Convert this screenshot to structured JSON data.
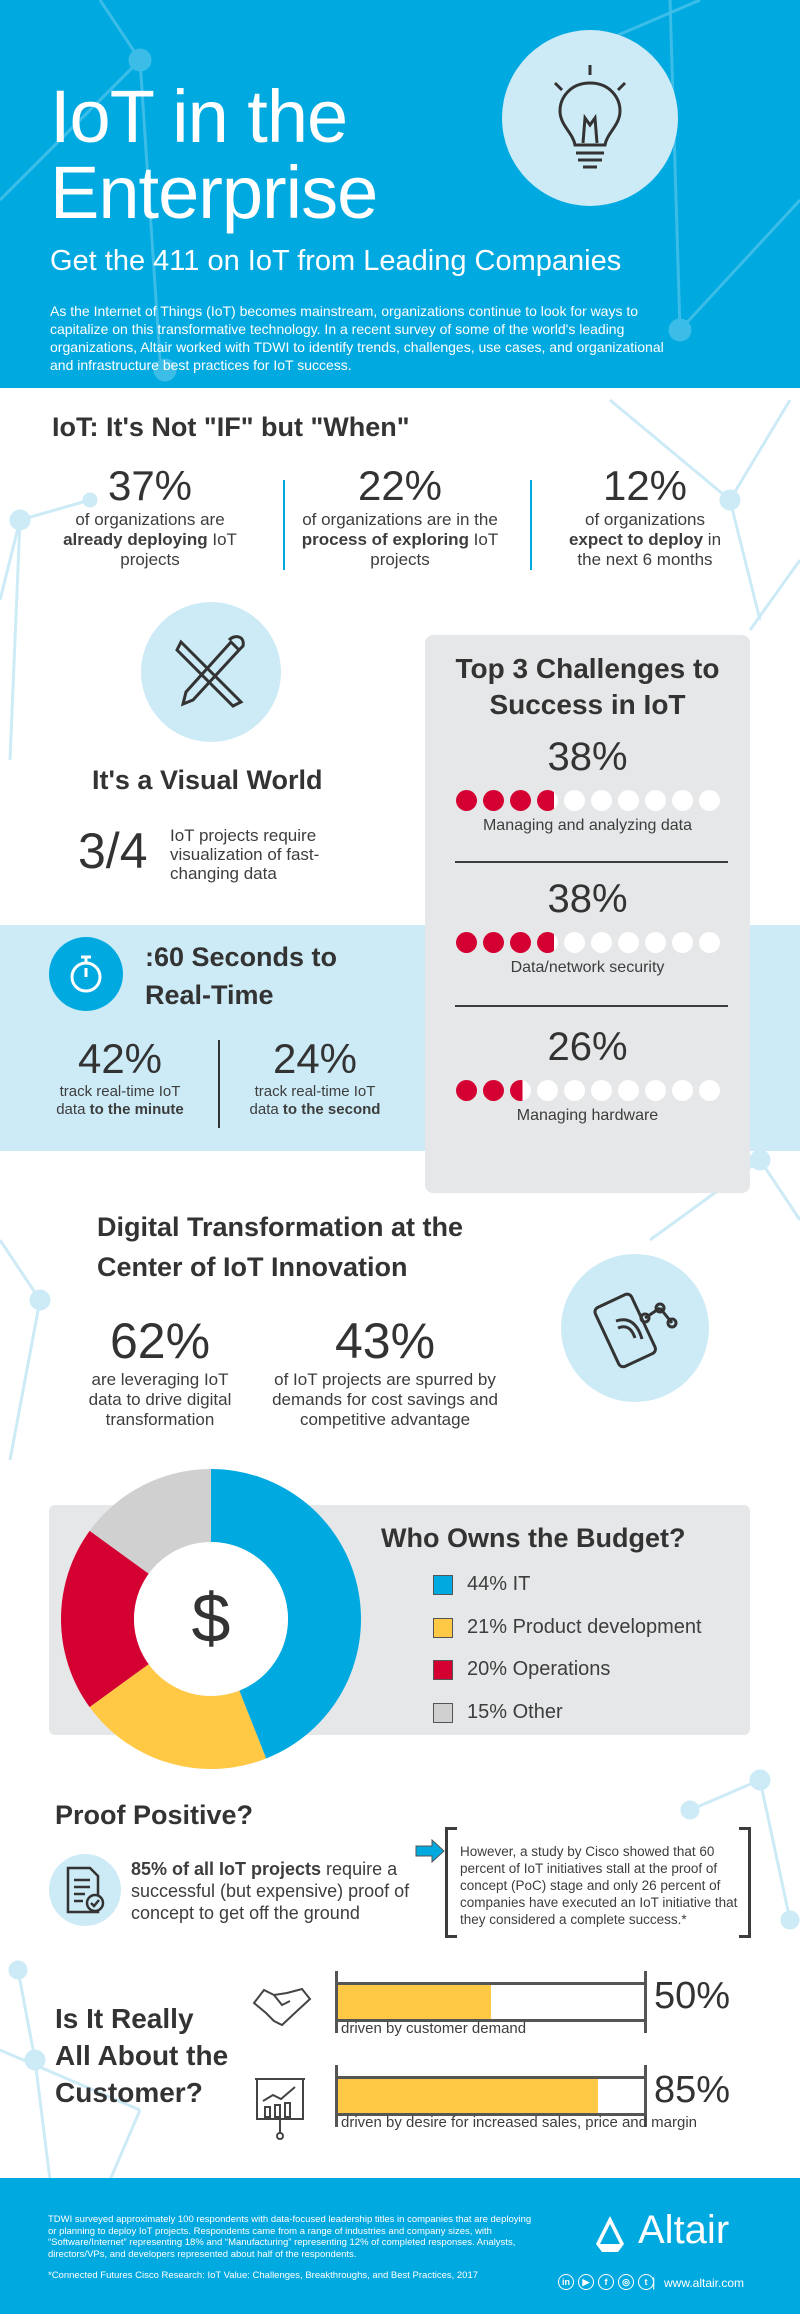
{
  "header": {
    "title_line1": "IoT in the",
    "title_line2": "Enterprise",
    "subtitle": "Get the 411 on IoT from Leading Companies",
    "intro": "As the Internet of Things (IoT) becomes mainstream, organizations continue to look for ways to capitalize on this transformative technology. In a recent survey of some of the world's leading organizations, Altair worked with TDWI to identify trends, challenges, use cases, and organizational and infrastructure best practices for IoT success.",
    "icon": "lightbulb-icon"
  },
  "when": {
    "title": "IoT: It's Not \"IF\" but \"When\"",
    "stats": [
      {
        "value": "37%",
        "pre": "of organizations are ",
        "bold": "already deploying",
        "post": " IoT projects"
      },
      {
        "value": "22%",
        "pre": "of organizations are in the ",
        "bold": "process of exploring",
        "post": " IoT projects"
      },
      {
        "value": "12%",
        "pre": "of organizations ",
        "bold": "expect to deploy",
        "post": " in the next 6 months"
      }
    ]
  },
  "visual": {
    "title": "It's a Visual World",
    "value": "3/4",
    "desc": "IoT projects require visualization of fast-changing data",
    "icon": "pencil-brush-icon"
  },
  "realtime": {
    "title_line1": ":60 Seconds to",
    "title_line2": "Real-Time",
    "icon": "stopwatch-icon",
    "stats": [
      {
        "value": "42%",
        "pre": "track real-time IoT data ",
        "bold": "to the minute"
      },
      {
        "value": "24%",
        "pre": "track real-time IoT data ",
        "bold": "to the second"
      }
    ]
  },
  "challenges": {
    "title": "Top 3 Challenges to Success in IoT",
    "accent": "#d50032",
    "items": [
      {
        "value": "38%",
        "fraction": 0.38,
        "label": "Managing and analyzing data"
      },
      {
        "value": "38%",
        "fraction": 0.38,
        "label": "Data/network security"
      },
      {
        "value": "26%",
        "fraction": 0.26,
        "label": "Managing hardware"
      }
    ]
  },
  "digital": {
    "title_line1": "Digital Transformation at the",
    "title_line2": "Center of IoT Innovation",
    "icon": "phone-network-icon",
    "stats": [
      {
        "value": "62%",
        "desc": "are leveraging IoT data to drive digital transformation"
      },
      {
        "value": "43%",
        "desc": "of IoT projects are spurred by demands for cost savings and competitive advantage"
      }
    ]
  },
  "chart_data": {
    "type": "pie",
    "title": "Who Owns the Budget?",
    "center_label": "$",
    "categories": [
      "IT",
      "Product development",
      "Operations",
      "Other"
    ],
    "values": [
      44,
      21,
      20,
      15
    ],
    "labels": [
      "44% IT",
      "21% Product development",
      "20% Operations",
      "15% Other"
    ],
    "colors": [
      "#00a9e0",
      "#ffc845",
      "#d50032",
      "#d0d0d0"
    ]
  },
  "proof": {
    "title": "Proof Positive?",
    "bold": "85% of all IoT projects",
    "text": " require a successful (but expensive) proof of concept to get off the ground",
    "quote": "However, a study by Cisco showed that 60 percent of IoT initiatives stall at the proof of concept (PoC) stage and only 26 percent of companies have executed an IoT initiative that they considered a complete success.*"
  },
  "customer": {
    "title_line1": "Is It Really",
    "title_line2": "All About the",
    "title_line3": "Customer?",
    "bars": [
      {
        "value": "50%",
        "fraction": 0.5,
        "label": "driven by customer demand",
        "icon": "handshake-icon"
      },
      {
        "value": "85%",
        "fraction": 0.85,
        "label": "driven by desire for increased sales, price and margin",
        "icon": "presentation-chart-icon"
      }
    ]
  },
  "footer": {
    "survey": "TDWI surveyed approximately 100 respondents with data-focused leadership titles in companies that are deploying or planning to deploy IoT projects. Respondents came from a range of industries and company sizes, with “Software/Internet” representing 18% and “Manufacturing” representing 12% of completed responses. Analysts, directors/VPs, and developers represented about half of the respondents.",
    "citation": "*Connected Futures Cisco Research: IoT Value: Challenges, Breakthroughs, and Best Practices, 2017",
    "brand": "Altair",
    "website": "www.altair.com",
    "separator": "|",
    "social": [
      "in",
      "▶",
      "f",
      "◎",
      "t"
    ]
  }
}
